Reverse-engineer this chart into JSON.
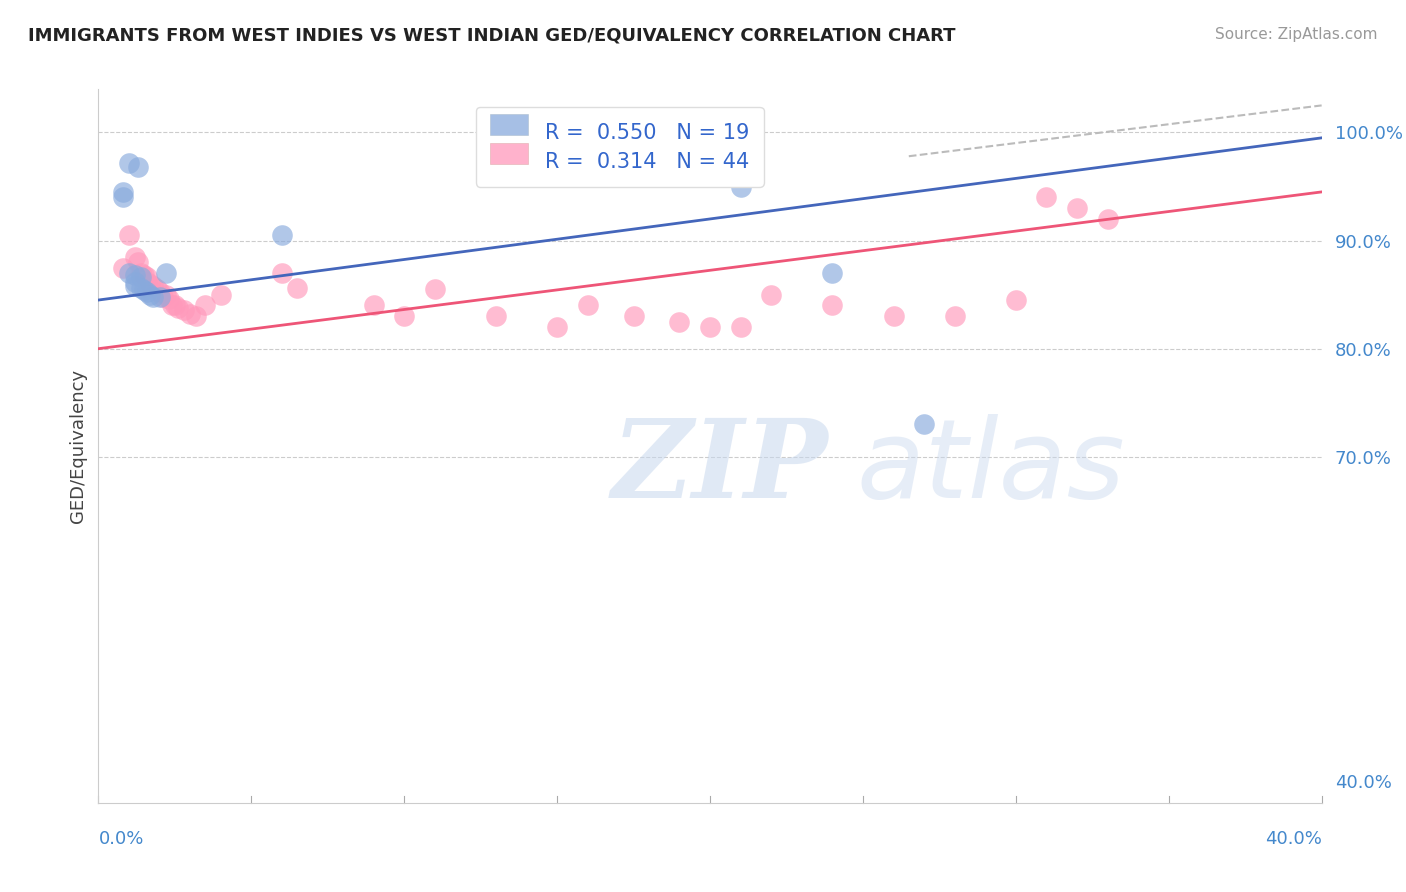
{
  "title": "IMMIGRANTS FROM WEST INDIES VS WEST INDIAN GED/EQUIVALENCY CORRELATION CHART",
  "source_text": "Source: ZipAtlas.com",
  "ylabel": "GED/Equivalency",
  "ylabel_right_ticks": [
    "100.0%",
    "90.0%",
    "80.0%",
    "70.0%",
    "40.0%"
  ],
  "ylabel_right_vals": [
    1.0,
    0.9,
    0.8,
    0.7,
    0.4
  ],
  "x_min": 0.0,
  "x_max": 0.4,
  "y_min": 0.38,
  "y_max": 1.04,
  "blue_color": "#88AADD",
  "pink_color": "#FF99BB",
  "blue_line_color": "#4466BB",
  "pink_line_color": "#EE5577",
  "title_color": "#222222",
  "source_color": "#999999",
  "watermark_zip": "ZIP",
  "watermark_atlas": "atlas",
  "blue_scatter_x": [
    0.01,
    0.013,
    0.008,
    0.008,
    0.01,
    0.012,
    0.014,
    0.012,
    0.012,
    0.014,
    0.015,
    0.016,
    0.017,
    0.018,
    0.02,
    0.022,
    0.06,
    0.19,
    0.21,
    0.24,
    0.27
  ],
  "blue_scatter_y": [
    0.972,
    0.968,
    0.945,
    0.94,
    0.87,
    0.868,
    0.866,
    0.862,
    0.858,
    0.856,
    0.854,
    0.852,
    0.85,
    0.848,
    0.848,
    0.87,
    0.905,
    0.96,
    0.95,
    0.87,
    0.73
  ],
  "pink_scatter_x": [
    0.008,
    0.01,
    0.012,
    0.013,
    0.014,
    0.015,
    0.016,
    0.016,
    0.017,
    0.018,
    0.019,
    0.02,
    0.021,
    0.022,
    0.023,
    0.024,
    0.025,
    0.026,
    0.028,
    0.03,
    0.032,
    0.035,
    0.04,
    0.06,
    0.065,
    0.09,
    0.1,
    0.11,
    0.13,
    0.15,
    0.16,
    0.175,
    0.19,
    0.2,
    0.21,
    0.22,
    0.24,
    0.26,
    0.28,
    0.3,
    0.31,
    0.32,
    0.33
  ],
  "pink_scatter_y": [
    0.875,
    0.905,
    0.885,
    0.88,
    0.87,
    0.868,
    0.866,
    0.862,
    0.86,
    0.858,
    0.855,
    0.852,
    0.848,
    0.85,
    0.846,
    0.84,
    0.84,
    0.838,
    0.836,
    0.832,
    0.83,
    0.84,
    0.85,
    0.87,
    0.856,
    0.84,
    0.83,
    0.855,
    0.83,
    0.82,
    0.84,
    0.83,
    0.825,
    0.82,
    0.82,
    0.85,
    0.84,
    0.83,
    0.83,
    0.845,
    0.94,
    0.93,
    0.92
  ],
  "blue_line_x0": 0.0,
  "blue_line_y0": 0.845,
  "blue_line_x1": 0.4,
  "blue_line_y1": 0.995,
  "pink_line_x0": 0.0,
  "pink_line_y0": 0.8,
  "pink_line_x1": 0.4,
  "pink_line_y1": 0.945,
  "dash_line_x0": 0.265,
  "dash_line_y0": 0.978,
  "dash_line_x1": 0.4,
  "dash_line_y1": 1.025
}
